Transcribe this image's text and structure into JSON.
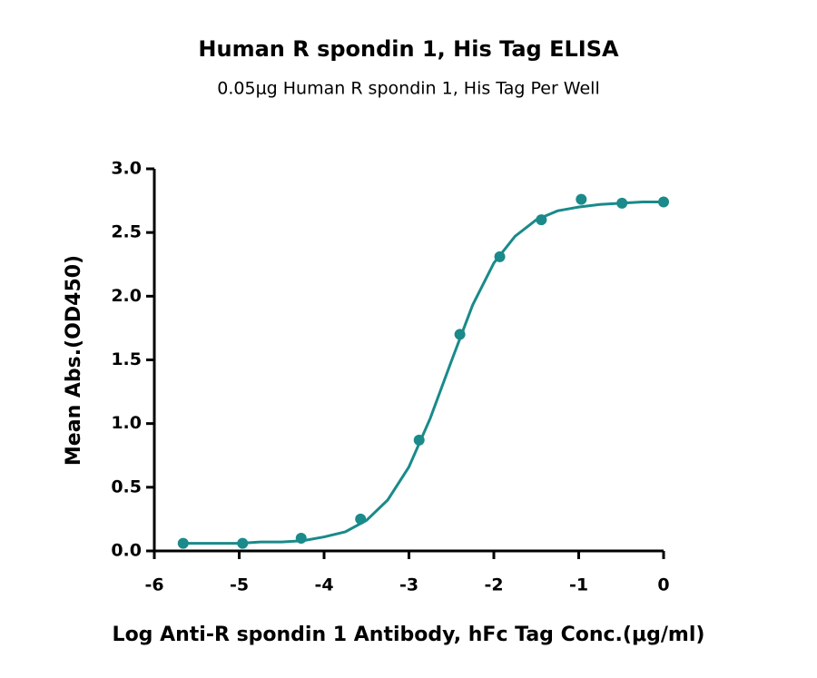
{
  "chart_data": {
    "type": "scatter",
    "title": "Human R spondin 1, His Tag ELISA",
    "subtitle": "0.05μg Human R spondin 1, His Tag Per Well",
    "x_label": "Log Anti-R spondin 1 Antibody, hFc Tag Conc.(μg/ml)",
    "y_label": "Mean Abs.(OD450)",
    "color": "#1a8a8a",
    "points": {
      "x": [
        -5.66,
        -4.96,
        -4.27,
        -3.57,
        -2.88,
        -2.4,
        -1.93,
        -1.44,
        -0.97,
        -0.49,
        0
      ],
      "values": [
        0.06,
        0.06,
        0.1,
        0.25,
        0.87,
        1.7,
        2.31,
        2.6,
        2.76,
        2.73,
        2.74
      ]
    },
    "curve": {
      "x": [
        -5.66,
        -5.25,
        -5.0,
        -4.75,
        -4.5,
        -4.25,
        -4.0,
        -3.75,
        -3.5,
        -3.25,
        -3.0,
        -2.75,
        -2.5,
        -2.25,
        -2.0,
        -1.75,
        -1.5,
        -1.25,
        -1.0,
        -0.75,
        -0.5,
        -0.25,
        0
      ],
      "values": [
        0.06,
        0.06,
        0.06,
        0.07,
        0.07,
        0.08,
        0.11,
        0.15,
        0.24,
        0.4,
        0.66,
        1.04,
        1.49,
        1.93,
        2.26,
        2.47,
        2.6,
        2.67,
        2.7,
        2.72,
        2.73,
        2.74,
        2.74
      ]
    },
    "xlim": [
      -6,
      0
    ],
    "xticks": [
      -6,
      -5,
      -4,
      -3,
      -2,
      -1,
      0
    ],
    "ylim": [
      0,
      3
    ],
    "yticks": [
      {
        "value": 0,
        "label": "0.0"
      },
      0.5,
      {
        "value": 1,
        "label": "1.0"
      },
      1.5,
      {
        "value": 2,
        "label": "2.0"
      },
      2.5,
      {
        "value": 3,
        "label": "3.0"
      }
    ]
  }
}
